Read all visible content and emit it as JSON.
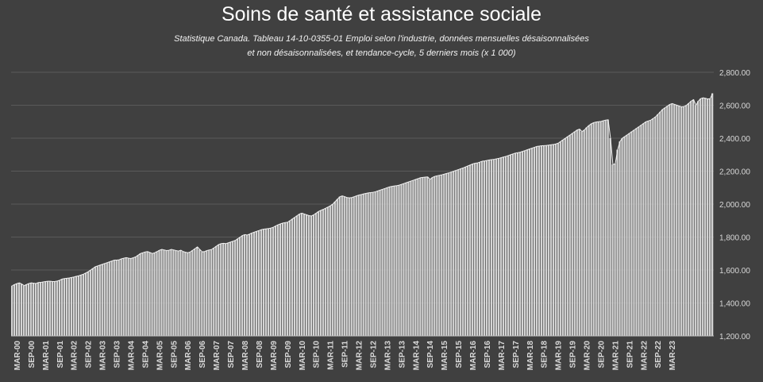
{
  "chart_data": {
    "type": "area",
    "title": "Soins de santé et assistance sociale",
    "subtitle_lines": [
      "Statistique Canada. Tableau 14-10-0355-01  Emploi selon l'industrie, données mensuelles désaisonnalisées",
      "et non désaisonnalisées, et tendance-cycle, 5 derniers mois (x 1 000)"
    ],
    "xlabel": "",
    "ylabel": "",
    "ylim": [
      1200,
      2800
    ],
    "y_ticks": [
      "1,200.00",
      "1,400.00",
      "1,600.00",
      "1,800.00",
      "2,000.00",
      "2,200.00",
      "2,400.00",
      "2,600.00",
      "2,800.00"
    ],
    "grid": true,
    "legend": "none",
    "x_tick_labels": [
      "MAR-00",
      "SEP-00",
      "MAR-01",
      "SEP-01",
      "MAR-02",
      "SEP-02",
      "MAR-03",
      "SEP-03",
      "MAR-04",
      "SEP-04",
      "MAR-05",
      "SEP-05",
      "MAR-06",
      "SEP-06",
      "MAR-07",
      "SEP-07",
      "MAR-08",
      "SEP-08",
      "MAR-09",
      "SEP-09",
      "MAR-10",
      "SEP-10",
      "MAR-11",
      "SEP-11",
      "MAR-12",
      "SEP-12",
      "MAR-13",
      "SEP-13",
      "MAR-14",
      "SEP-14",
      "MAR-15",
      "SEP-15",
      "MAR-16",
      "SEP-16",
      "MAR-17",
      "SEP-17",
      "MAR-18",
      "SEP-18",
      "MAR-19",
      "SEP-19",
      "MAR-20",
      "SEP-20",
      "MAR-21",
      "SEP-21",
      "MAR-22",
      "SEP-22",
      "MAR-23"
    ],
    "x_start": "2000-01",
    "series": [
      {
        "values": [
          1505,
          1512,
          1518,
          1522,
          1515,
          1505,
          1512,
          1518,
          1522,
          1520,
          1518,
          1524,
          1525,
          1528,
          1530,
          1532,
          1532,
          1530,
          1531,
          1533,
          1538,
          1545,
          1548,
          1550,
          1552,
          1555,
          1558,
          1562,
          1565,
          1570,
          1575,
          1582,
          1590,
          1600,
          1610,
          1620,
          1625,
          1630,
          1635,
          1640,
          1645,
          1650,
          1655,
          1660,
          1660,
          1662,
          1668,
          1672,
          1675,
          1672,
          1670,
          1675,
          1680,
          1690,
          1700,
          1705,
          1710,
          1712,
          1706,
          1700,
          1705,
          1712,
          1720,
          1725,
          1722,
          1718,
          1720,
          1725,
          1722,
          1718,
          1715,
          1720,
          1712,
          1708,
          1705,
          1710,
          1720,
          1730,
          1740,
          1725,
          1710,
          1712,
          1718,
          1722,
          1725,
          1735,
          1745,
          1755,
          1760,
          1762,
          1760,
          1765,
          1770,
          1775,
          1780,
          1790,
          1800,
          1810,
          1815,
          1812,
          1818,
          1825,
          1830,
          1835,
          1840,
          1845,
          1848,
          1850,
          1852,
          1855,
          1860,
          1868,
          1875,
          1880,
          1885,
          1888,
          1890,
          1900,
          1910,
          1920,
          1930,
          1940,
          1945,
          1940,
          1935,
          1930,
          1928,
          1935,
          1945,
          1955,
          1962,
          1968,
          1975,
          1982,
          1990,
          2000,
          2015,
          2030,
          2045,
          2050,
          2045,
          2040,
          2038,
          2040,
          2045,
          2050,
          2055,
          2058,
          2062,
          2065,
          2068,
          2070,
          2072,
          2075,
          2080,
          2085,
          2090,
          2095,
          2100,
          2105,
          2108,
          2110,
          2112,
          2115,
          2120,
          2125,
          2130,
          2135,
          2140,
          2145,
          2150,
          2155,
          2160,
          2162,
          2164,
          2165,
          2150,
          2162,
          2168,
          2172,
          2175,
          2178,
          2182,
          2186,
          2190,
          2195,
          2200,
          2205,
          2210,
          2215,
          2220,
          2226,
          2232,
          2238,
          2244,
          2248,
          2250,
          2255,
          2260,
          2262,
          2265,
          2268,
          2270,
          2272,
          2275,
          2278,
          2282,
          2286,
          2290,
          2295,
          2300,
          2305,
          2310,
          2312,
          2315,
          2320,
          2325,
          2330,
          2335,
          2340,
          2345,
          2350,
          2352,
          2354,
          2355,
          2356,
          2358,
          2360,
          2362,
          2365,
          2370,
          2380,
          2390,
          2400,
          2410,
          2420,
          2430,
          2440,
          2450,
          2455,
          2440,
          2450,
          2465,
          2478,
          2488,
          2495,
          2498,
          2500,
          2502,
          2506,
          2510,
          2512,
          2400,
          2240,
          2245,
          2330,
          2380,
          2400,
          2410,
          2420,
          2430,
          2440,
          2450,
          2460,
          2470,
          2480,
          2490,
          2500,
          2505,
          2510,
          2520,
          2530,
          2545,
          2560,
          2575,
          2585,
          2595,
          2605,
          2610,
          2605,
          2600,
          2595,
          2590,
          2592,
          2600,
          2612,
          2625,
          2634,
          2600,
          2625,
          2640,
          2645,
          2642,
          2638,
          2640,
          2672
        ]
      }
    ]
  }
}
